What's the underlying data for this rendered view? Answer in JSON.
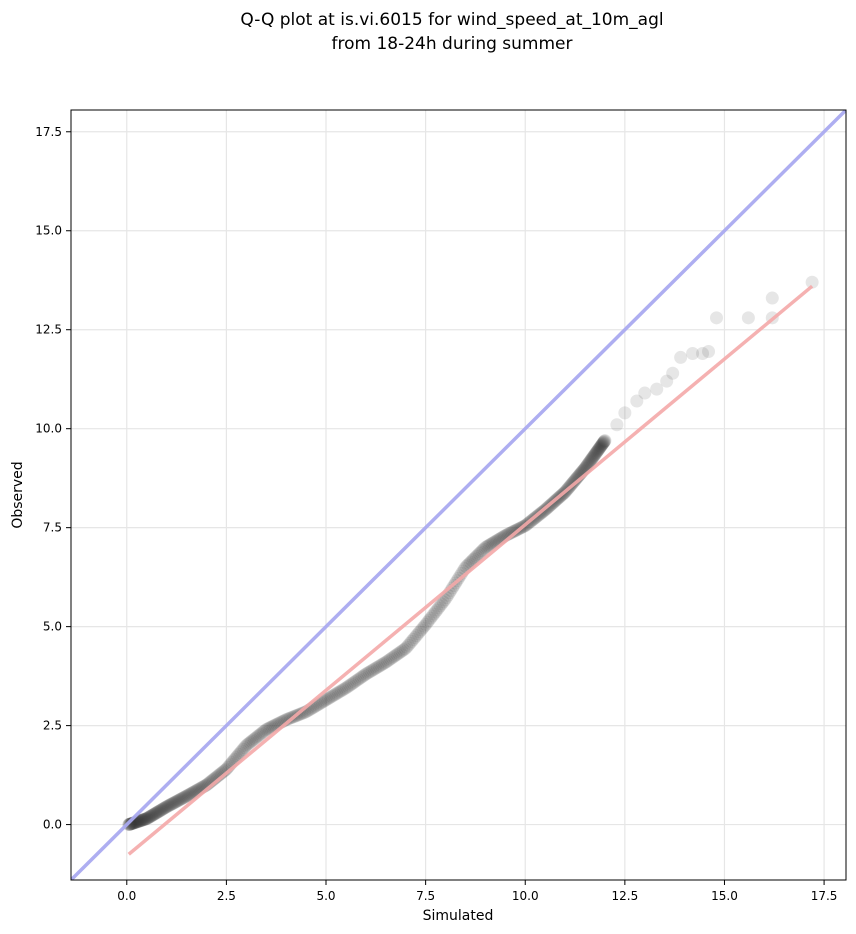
{
  "chart_data": {
    "type": "scatter",
    "title_lines": [
      "Q-Q plot at is.vi.6015 for wind_speed_at_10m_agl",
      "from 18-24h during summer"
    ],
    "xlabel": "Simulated",
    "ylabel": "Observed",
    "xlim": [
      -1.4,
      18.05
    ],
    "ylim": [
      -1.4,
      18.05
    ],
    "xticks": [
      0.0,
      2.5,
      5.0,
      7.5,
      10.0,
      12.5,
      15.0,
      17.5
    ],
    "yticks": [
      0.0,
      2.5,
      5.0,
      7.5,
      10.0,
      12.5,
      15.0,
      17.5
    ],
    "xtick_labels": [
      "0.0",
      "2.5",
      "5.0",
      "7.5",
      "10.0",
      "12.5",
      "15.0",
      "17.5"
    ],
    "ytick_labels": [
      "0.0",
      "2.5",
      "5.0",
      "7.5",
      "10.0",
      "12.5",
      "15.0",
      "17.5"
    ],
    "grid": true,
    "colors": {
      "points": "#333333",
      "identity_line": "#aaaaf0",
      "fit_line": "#f4a8a8"
    },
    "identity_line": {
      "x": [
        -1.4,
        18.05
      ],
      "y": [
        -1.4,
        18.05
      ]
    },
    "fit_line": {
      "x": [
        0.05,
        17.2
      ],
      "y": [
        -0.75,
        13.6
      ]
    },
    "quantile_curve": [
      [
        0.05,
        0.0
      ],
      [
        0.5,
        0.15
      ],
      [
        1.0,
        0.45
      ],
      [
        1.5,
        0.72
      ],
      [
        2.0,
        1.0
      ],
      [
        2.5,
        1.4
      ],
      [
        3.0,
        2.0
      ],
      [
        3.5,
        2.4
      ],
      [
        4.0,
        2.65
      ],
      [
        4.5,
        2.85
      ],
      [
        5.0,
        3.15
      ],
      [
        5.5,
        3.45
      ],
      [
        6.0,
        3.8
      ],
      [
        6.5,
        4.1
      ],
      [
        7.0,
        4.45
      ],
      [
        7.5,
        5.05
      ],
      [
        8.0,
        5.7
      ],
      [
        8.5,
        6.5
      ],
      [
        9.0,
        7.0
      ],
      [
        9.5,
        7.3
      ],
      [
        10.0,
        7.55
      ],
      [
        10.5,
        7.95
      ],
      [
        11.0,
        8.4
      ],
      [
        11.5,
        9.0
      ],
      [
        12.0,
        9.7
      ]
    ],
    "outlier_points": [
      [
        12.3,
        10.1
      ],
      [
        12.5,
        10.4
      ],
      [
        12.8,
        10.7
      ],
      [
        13.0,
        10.9
      ],
      [
        13.3,
        11.0
      ],
      [
        13.55,
        11.2
      ],
      [
        13.7,
        11.4
      ],
      [
        13.9,
        11.8
      ],
      [
        14.2,
        11.9
      ],
      [
        14.45,
        11.9
      ],
      [
        14.6,
        11.95
      ],
      [
        14.8,
        12.8
      ],
      [
        15.6,
        12.8
      ],
      [
        16.2,
        12.8
      ],
      [
        16.2,
        13.3
      ],
      [
        17.2,
        13.7
      ]
    ],
    "n_points": 400
  }
}
